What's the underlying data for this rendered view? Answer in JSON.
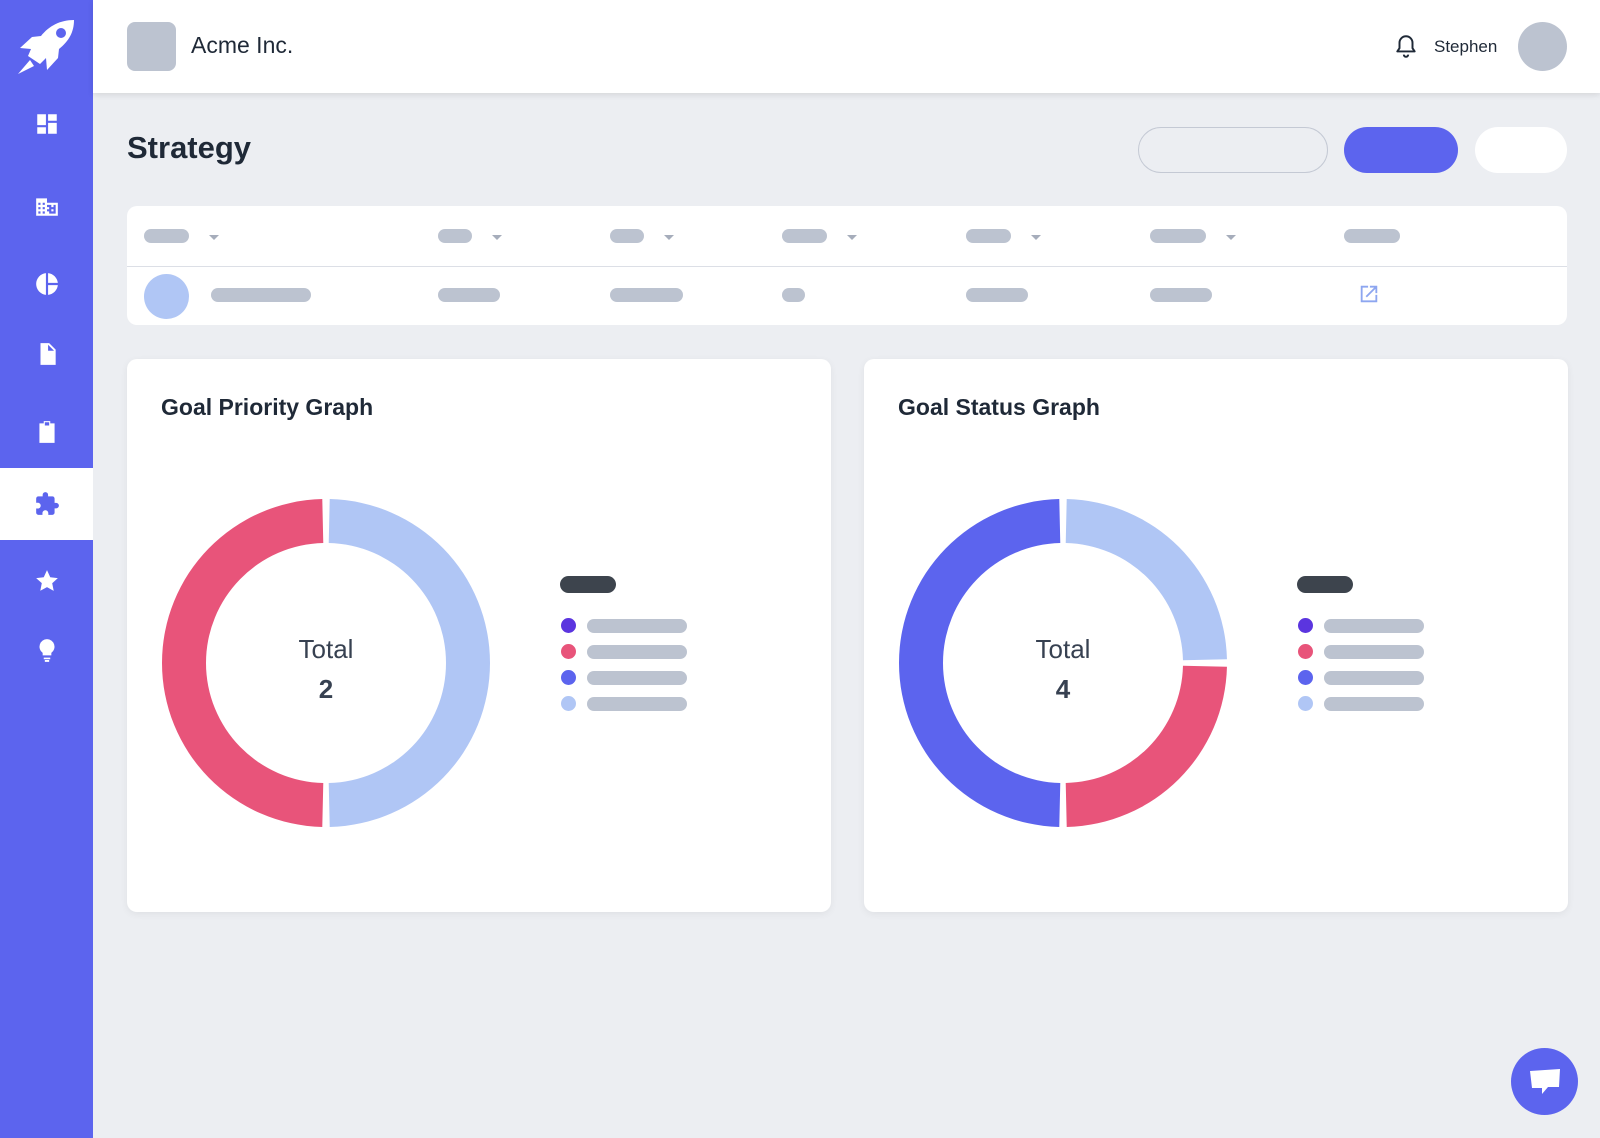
{
  "header": {
    "company_name": "Acme Inc.",
    "user_name": "Stephen"
  },
  "page": {
    "title": "Strategy"
  },
  "sidebar": {
    "items": [
      {
        "icon": "dashboard-icon"
      },
      {
        "icon": "building-icon"
      },
      {
        "icon": "pie-chart-icon"
      },
      {
        "icon": "document-icon"
      },
      {
        "icon": "clipboard-icon"
      },
      {
        "icon": "puzzle-icon",
        "active": true
      },
      {
        "icon": "star-icon"
      },
      {
        "icon": "lightbulb-icon"
      }
    ]
  },
  "colors": {
    "accent": "#5c64ee",
    "purple": "#5b35df",
    "pink": "#e8547a",
    "blue": "#5c64ee",
    "light_blue": "#b0c6f5",
    "placeholder": "#bcc3d0"
  },
  "chart_data": [
    {
      "type": "pie",
      "title": "Goal Priority Graph",
      "center_label": "Total",
      "total": "2",
      "slices": [
        {
          "value": 1,
          "color": "#b0c6f5"
        },
        {
          "value": 1,
          "color": "#e8547a"
        }
      ],
      "legend_colors": [
        "#5b35df",
        "#e8547a",
        "#5c64ee",
        "#b0c6f5"
      ]
    },
    {
      "type": "pie",
      "title": "Goal Status Graph",
      "center_label": "Total",
      "total": "4",
      "slices": [
        {
          "value": 1,
          "color": "#b0c6f5"
        },
        {
          "value": 1,
          "color": "#e8547a"
        },
        {
          "value": 2,
          "color": "#5c64ee"
        }
      ],
      "legend_colors": [
        "#5b35df",
        "#e8547a",
        "#5c64ee",
        "#b0c6f5"
      ]
    }
  ]
}
